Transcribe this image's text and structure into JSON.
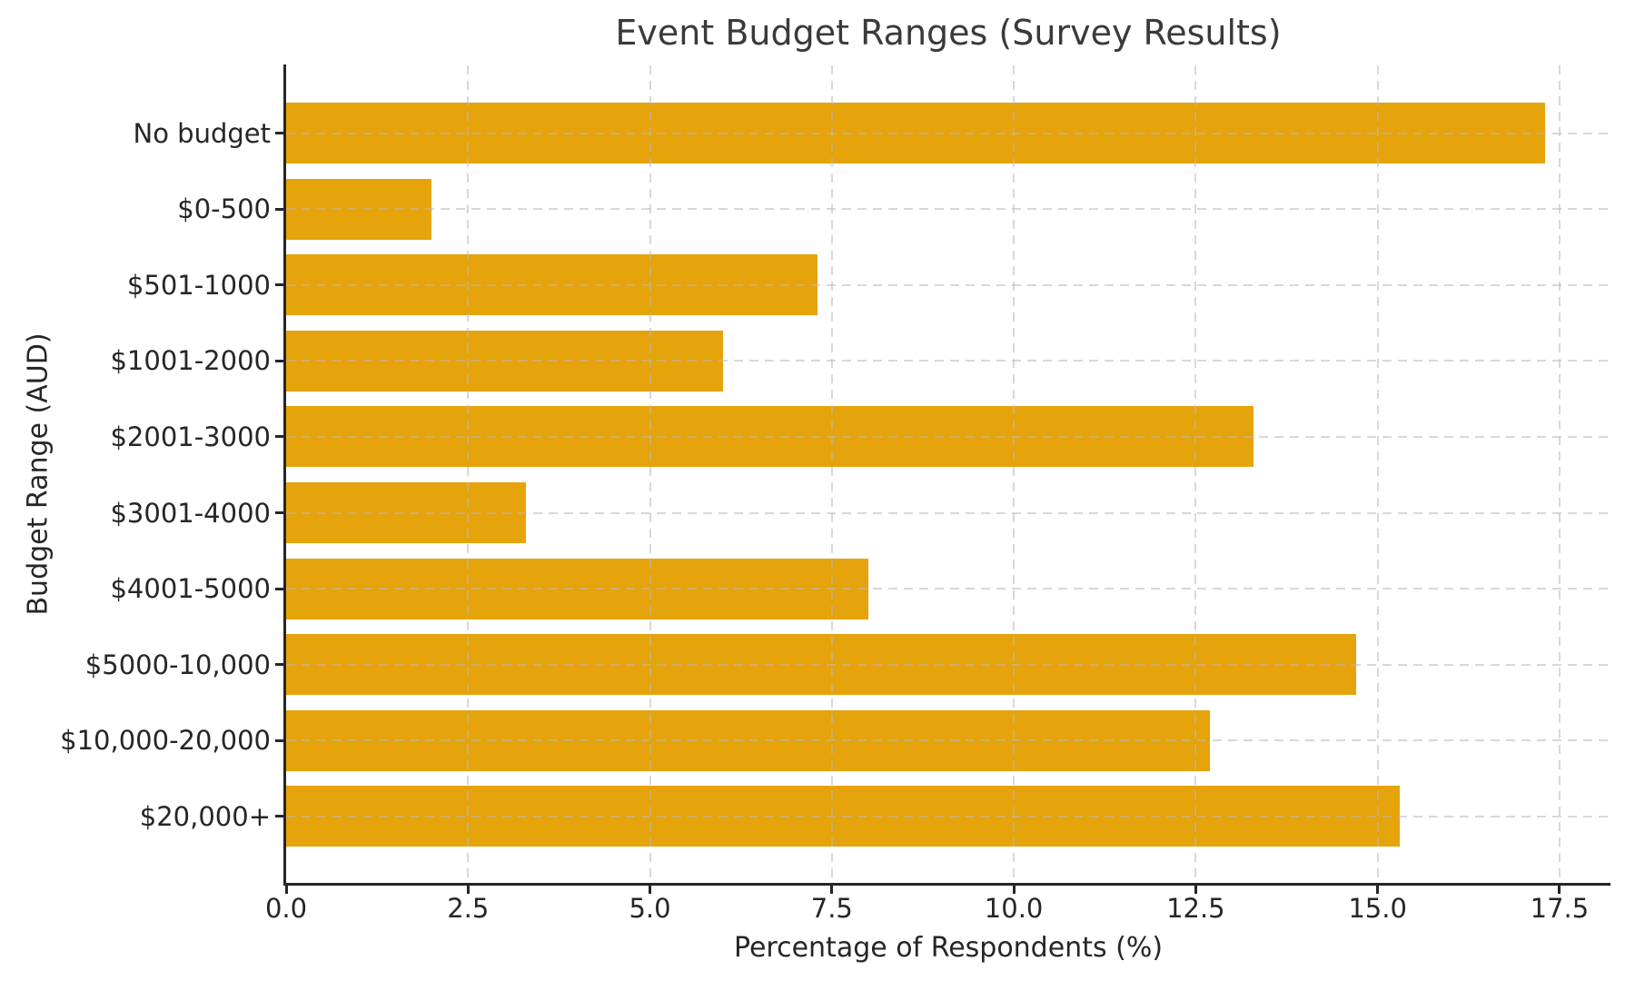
{
  "chart_data": {
    "type": "bar",
    "orientation": "horizontal",
    "title": "Event Budget Ranges (Survey Results)",
    "xlabel": "Percentage of Respondents (%)",
    "ylabel": "Budget Range (AUD)",
    "categories": [
      "No budget",
      "$0-500",
      "$501-1000",
      "$1001-2000",
      "$2001-3000",
      "$3001-4000",
      "$4001-5000",
      "$5000-10,000",
      "$10,000-20,000",
      "$20,000+"
    ],
    "values": [
      17.3,
      2.0,
      7.3,
      6.0,
      13.3,
      3.3,
      8.0,
      14.7,
      12.7,
      15.3
    ],
    "xlim": [
      0,
      18.2
    ],
    "xticks": [
      0,
      2.5,
      5,
      7.5,
      10,
      12.5,
      15,
      17.5
    ],
    "xtick_labels": [
      "0.0",
      "2.5",
      "5.0",
      "7.5",
      "10.0",
      "12.5",
      "15.0",
      "17.5"
    ],
    "grid": "both-dashed",
    "legend_position": "none",
    "bar_color": "#E5A30C",
    "grid_color": "#B9B9B9",
    "spine_color": "#262626",
    "text_color": "#262626",
    "title_color": "#3A3A3A"
  }
}
